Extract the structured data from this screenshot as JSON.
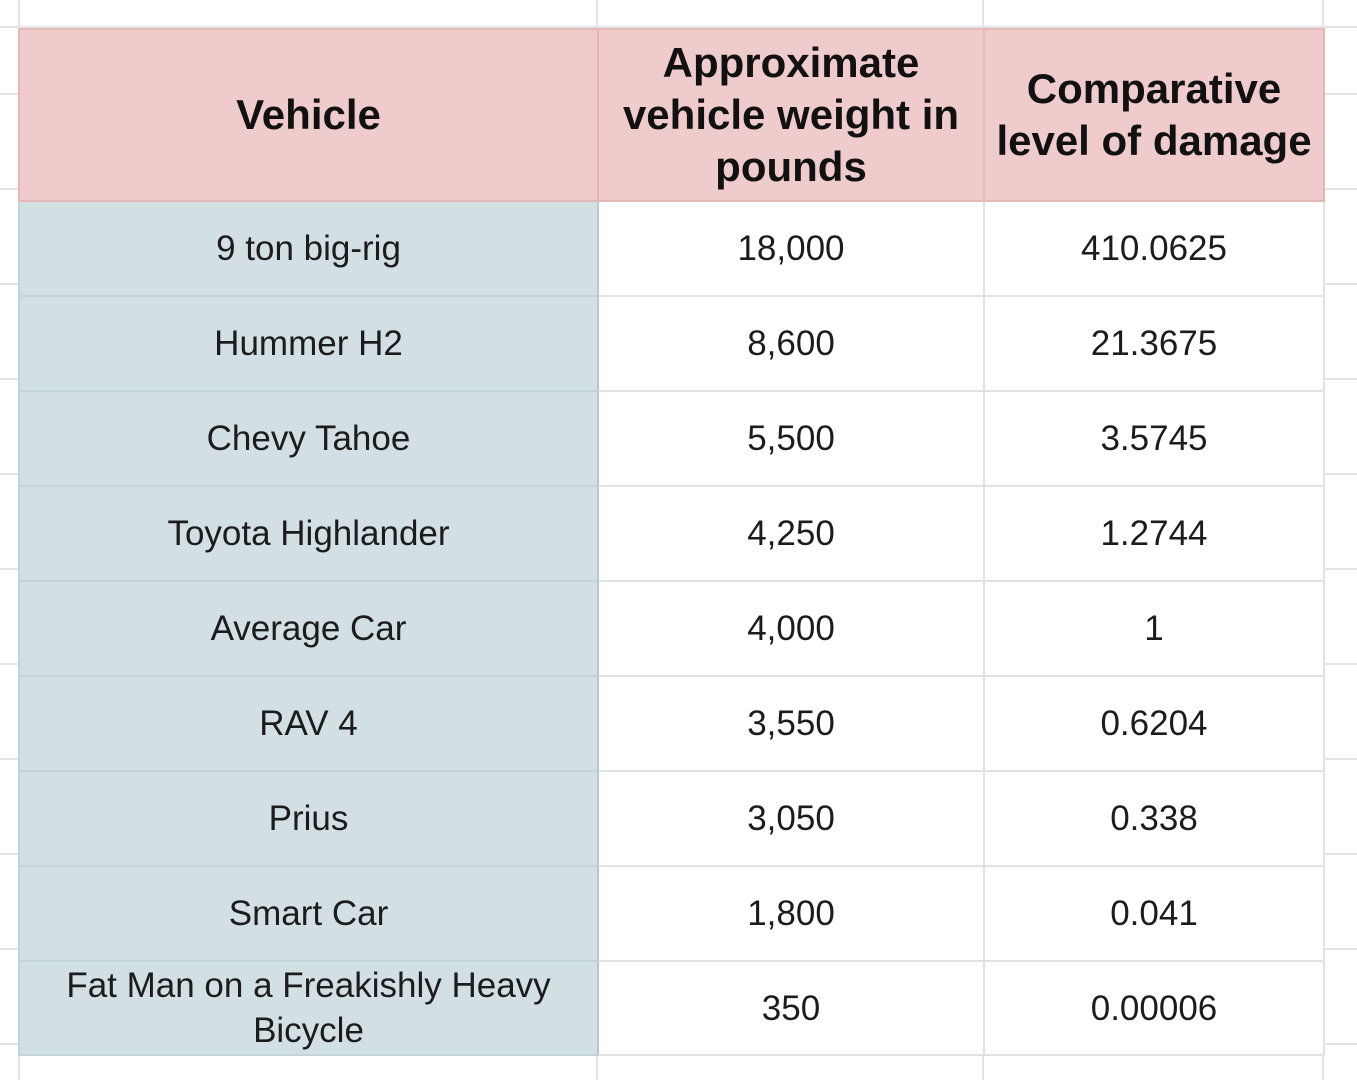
{
  "table": {
    "headers": [
      "Vehicle",
      "Approximate vehicle weight in pounds",
      "Comparative level of damage"
    ],
    "rows": [
      [
        "9 ton big-rig",
        "18,000",
        "410.0625"
      ],
      [
        "Hummer H2",
        "8,600",
        "21.3675"
      ],
      [
        "Chevy Tahoe",
        "5,500",
        "3.5745"
      ],
      [
        "Toyota Highlander",
        "4,250",
        "1.2744"
      ],
      [
        "Average Car",
        "4,000",
        "1"
      ],
      [
        "RAV 4",
        "3,550",
        "0.6204"
      ],
      [
        "Prius",
        "3,050",
        "0.338"
      ],
      [
        "Smart Car",
        "1,800",
        "0.041"
      ],
      [
        "Fat Man on a Freakishly Heavy Bicycle",
        "350",
        "0.00006"
      ]
    ]
  },
  "colors": {
    "header_bg": "#efcbcb",
    "vehicle_column_bg": "#d2dfe3",
    "cell_bg": "#ffffff",
    "gridline": "#e2e2e2"
  }
}
